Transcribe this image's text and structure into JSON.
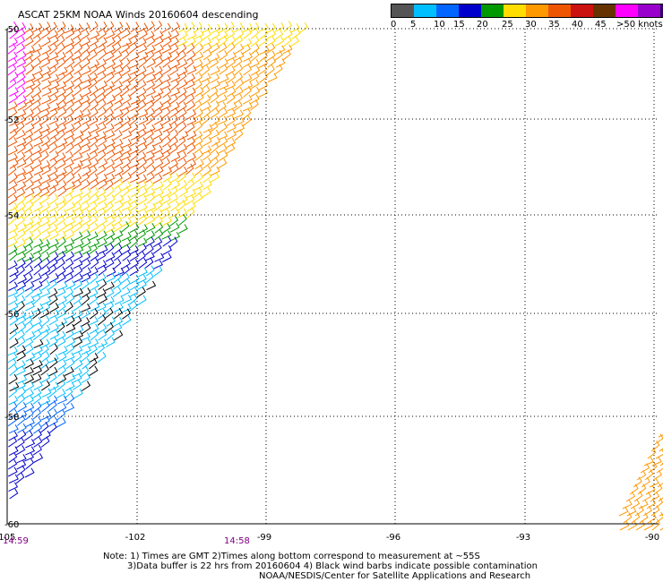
{
  "title": "ASCAT 25KM NOAA Winds 20160604 descending",
  "legend": {
    "labels": [
      "0",
      "5",
      "10",
      "15",
      "20",
      "25",
      "30",
      "35",
      "40",
      "45",
      ">50 knots"
    ],
    "colors": [
      "#555555",
      "#00bfff",
      "#0066ff",
      "#0000cc",
      "#009900",
      "#ffdd00",
      "#ff9900",
      "#ee5500",
      "#cc1111",
      "#663300",
      "#ff00ff",
      "#9900cc",
      "#330066"
    ]
  },
  "axes": {
    "lat_labels": [
      "-50",
      "-52",
      "-54",
      "-56",
      "-58",
      "-60"
    ],
    "lon_labels": [
      "-105",
      "-102",
      "-99",
      "-96",
      "-93",
      "-90"
    ]
  },
  "times": {
    "left": "14:59",
    "middle": "14:58"
  },
  "notes": {
    "line1": "Note: 1) Times are GMT 2)Times along bottom correspond to measurement at ~55S",
    "line2": "3)Data buffer is 22 hrs from 20160604 4) Black wind barbs indicate possible contamination",
    "line3": "NOAA/NESDIS/Center for Satellite Applications and Research"
  }
}
